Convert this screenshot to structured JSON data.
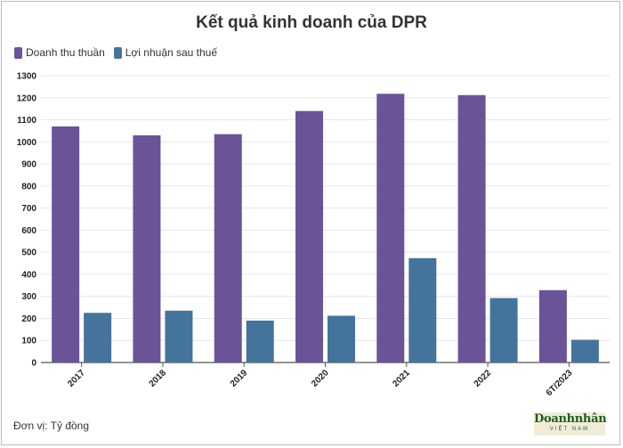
{
  "chart_data": {
    "type": "bar",
    "title": "Kết quả kinh doanh của DPR",
    "categories": [
      "2017",
      "2018",
      "2019",
      "2020",
      "2021",
      "2022",
      "6T/2023"
    ],
    "series": [
      {
        "name": "Doanh thu thuần",
        "color": "#6a5497",
        "values": [
          1070,
          1030,
          1035,
          1140,
          1218,
          1212,
          328
        ]
      },
      {
        "name": "Lợi nhuận sau thuế",
        "color": "#44749c",
        "values": [
          225,
          235,
          190,
          212,
          473,
          292,
          103
        ]
      }
    ],
    "ylim": [
      0,
      1300
    ],
    "yticks": [
      "0",
      "100",
      "200",
      "300",
      "400",
      "500",
      "600",
      "700",
      "800",
      "900",
      "1000",
      "1100",
      "1200",
      "1300"
    ],
    "legend_position": "top-left",
    "grid": true
  },
  "footer": {
    "unit_label": "Đơn vị: Tỷ đồng",
    "logo_main": "Doanhnhân",
    "logo_sub": "VIỆT NAM"
  }
}
